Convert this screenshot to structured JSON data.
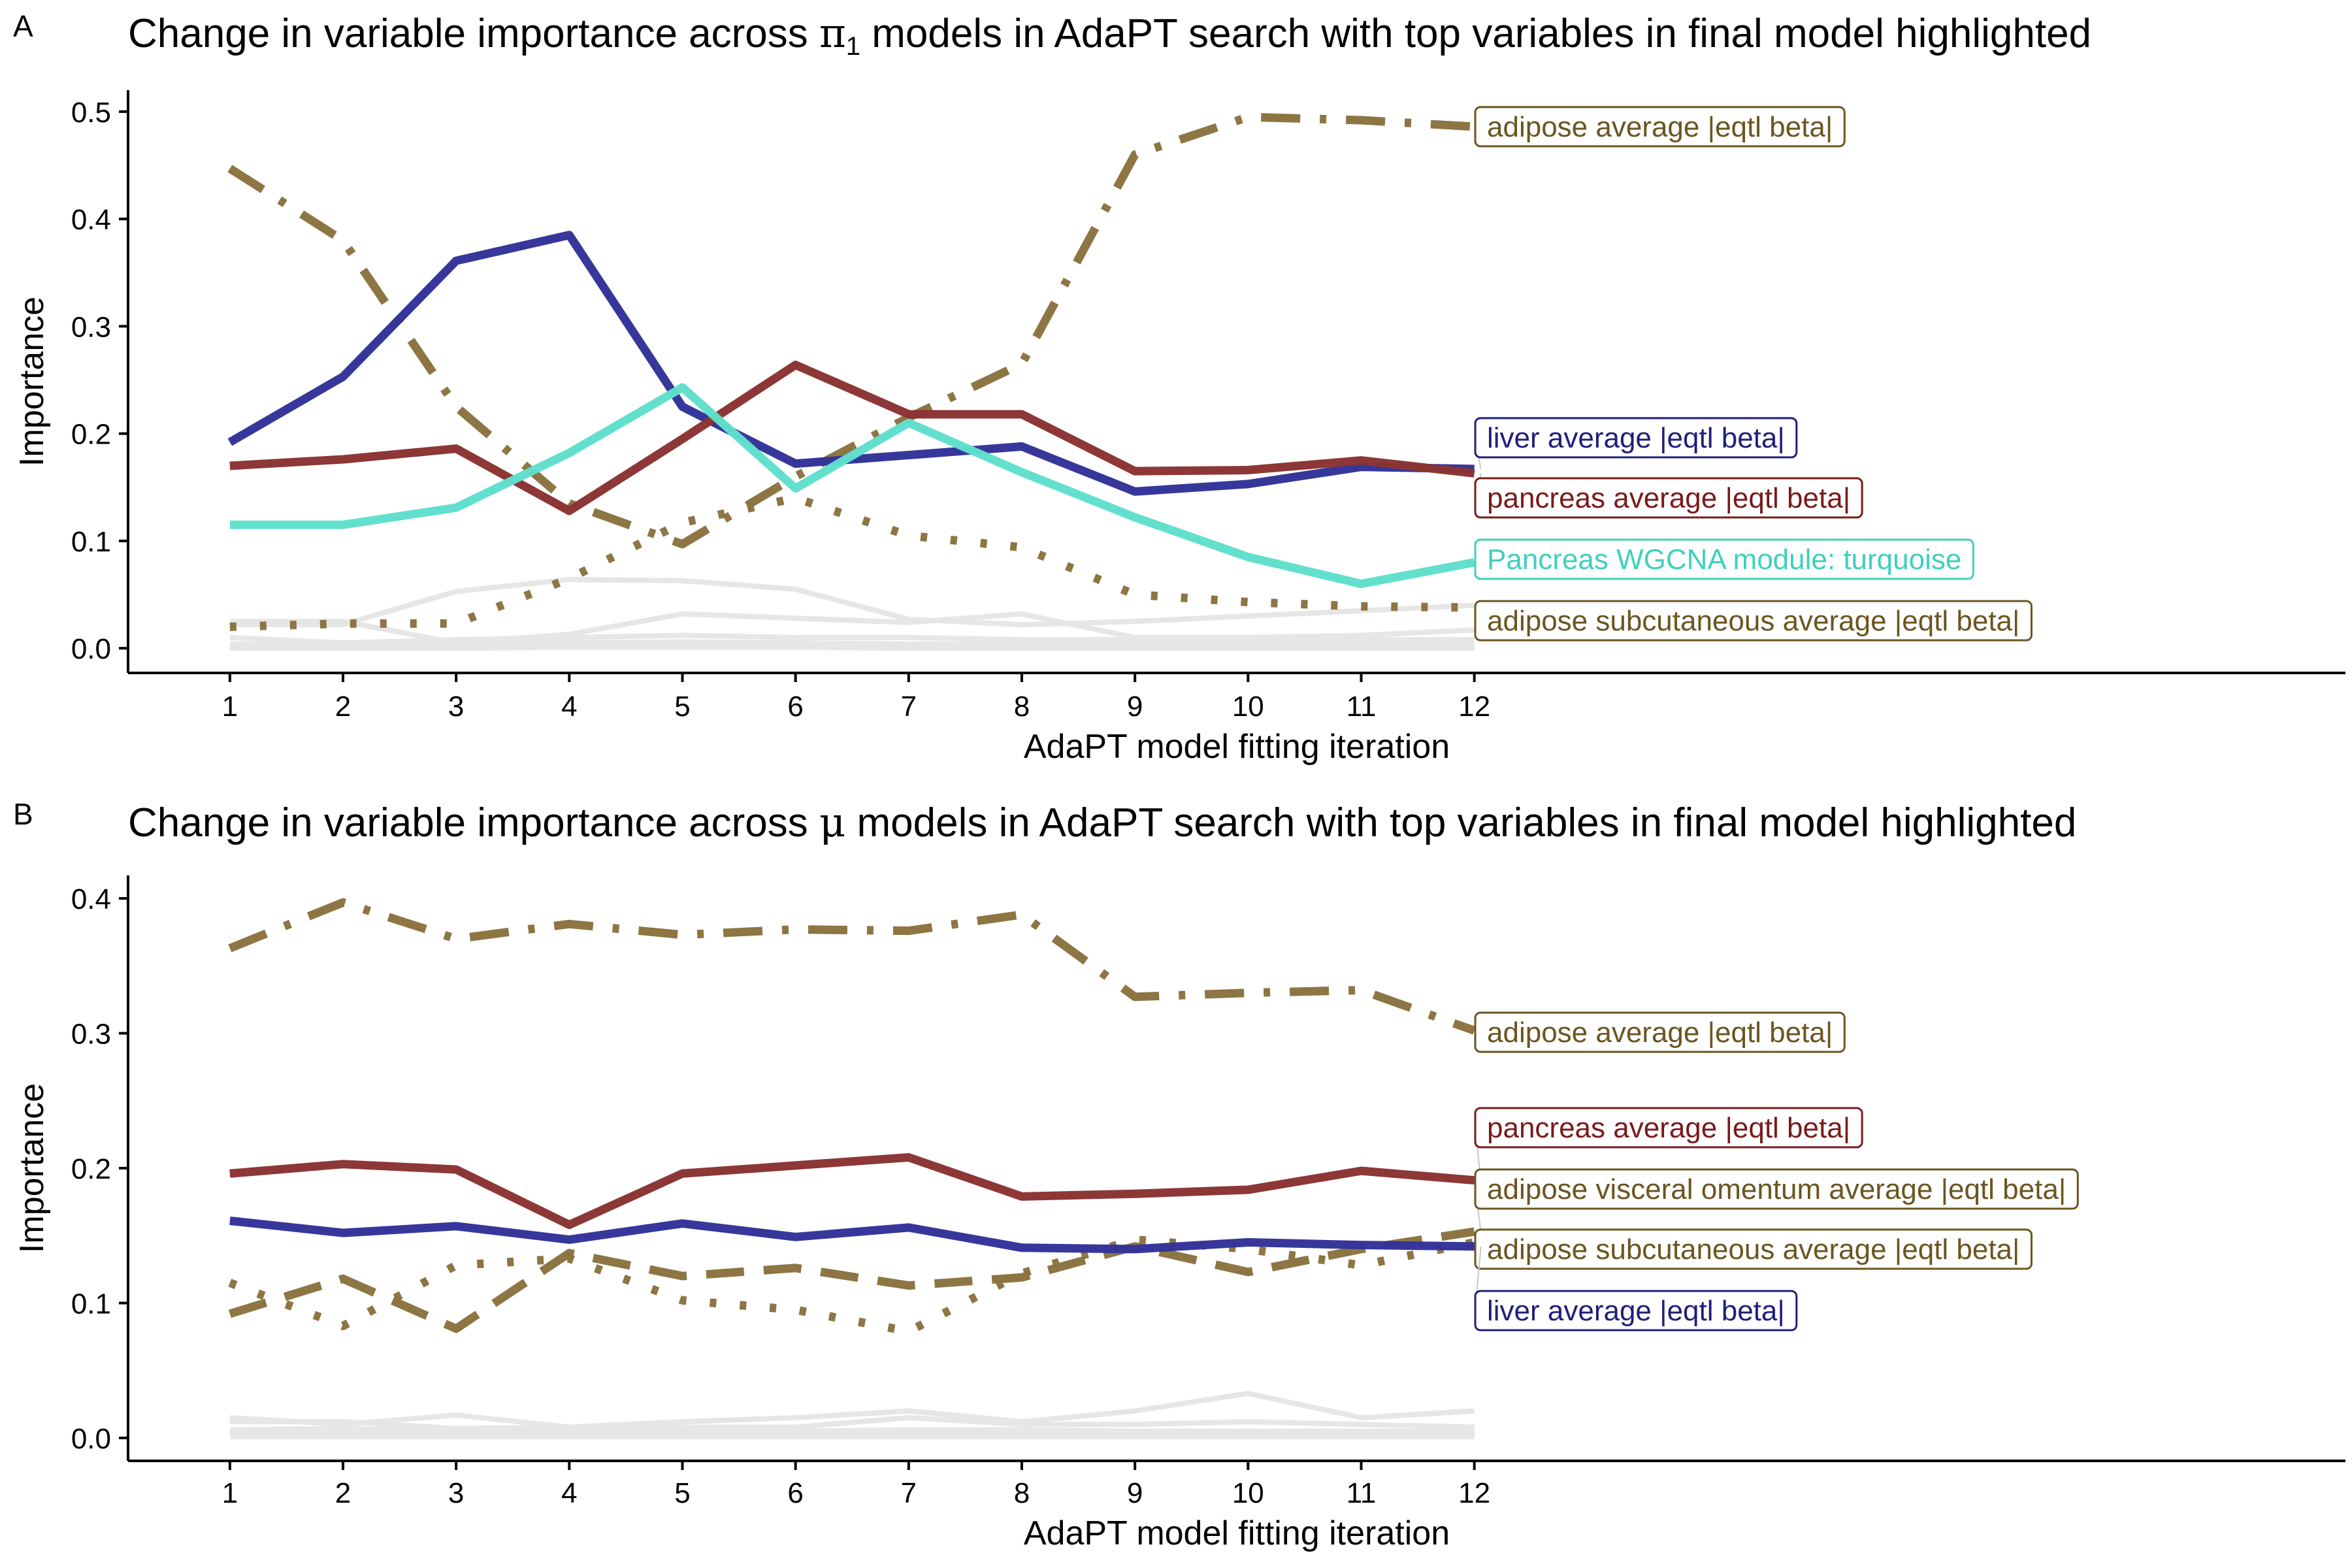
{
  "chart_data": [
    {
      "type": "line",
      "panel": "A",
      "title_pre": "Change in variable importance across ",
      "title_symbol": "π",
      "title_sub": "1",
      "title_post": " models in AdaPT search with top variables in final model highlighted",
      "xlabel": "AdaPT model fitting iteration",
      "ylabel": "Importance",
      "x": [
        1,
        2,
        3,
        4,
        5,
        6,
        7,
        8,
        9,
        10,
        11,
        12
      ],
      "xlim": [
        0.1,
        19.7
      ],
      "ylim": [
        -0.023,
        0.52
      ],
      "yticks": [
        "0.0",
        "0.1",
        "0.2",
        "0.3",
        "0.4",
        "0.5"
      ],
      "yticks_values": [
        0,
        0.1,
        0.2,
        0.3,
        0.4,
        0.5
      ],
      "xticks": [
        "1",
        "2",
        "3",
        "4",
        "5",
        "6",
        "7",
        "8",
        "9",
        "10",
        "11",
        "12"
      ],
      "series": [
        {
          "name": "adipose average |eqtl beta|",
          "color": "#8B7340",
          "dash": "dashdot",
          "label_color": "#6B5520",
          "values": [
            0.447,
            0.38,
            0.225,
            0.135,
            0.097,
            0.16,
            0.215,
            0.265,
            0.46,
            0.495,
            0.492,
            0.486
          ]
        },
        {
          "name": "liver average |eqtl beta|",
          "color": "#333399",
          "dash": "solid",
          "label_color": "#1F1F7A",
          "values": [
            0.192,
            0.253,
            0.361,
            0.385,
            0.225,
            0.172,
            0.18,
            0.188,
            0.146,
            0.153,
            0.169,
            0.167
          ]
        },
        {
          "name": "pancreas average |eqtl beta|",
          "color": "#8B3333",
          "dash": "solid",
          "label_color": "#7A1A1A",
          "values": [
            0.17,
            0.176,
            0.186,
            0.128,
            0.195,
            0.264,
            0.218,
            0.218,
            0.165,
            0.166,
            0.175,
            0.163
          ]
        },
        {
          "name": "Pancreas WGCNA module: turquoise",
          "color": "#5FDFCC",
          "dash": "solid",
          "label_color": "#40CFBF",
          "values": [
            0.115,
            0.115,
            0.131,
            0.182,
            0.243,
            0.149,
            0.21,
            0.164,
            0.122,
            0.085,
            0.06,
            0.08
          ]
        },
        {
          "name": "adipose subcutaneous average |eqtl beta|",
          "color": "#8B7340",
          "dash": "dotted",
          "label_color": "#6B5520",
          "values": [
            0.02,
            0.023,
            0.023,
            0.065,
            0.117,
            0.14,
            0.105,
            0.094,
            0.05,
            0.043,
            0.039,
            0.038
          ]
        }
      ],
      "background_series": [
        [
          0.022,
          0.022,
          0.053,
          0.064,
          0.063,
          0.055,
          0.027,
          0.022,
          0.025,
          0.03,
          0.035,
          0.04
        ],
        [
          0.025,
          0.025,
          0.005,
          0.013,
          0.032,
          0.028,
          0.024,
          0.032,
          0.01,
          0.01,
          0.012,
          0.017
        ],
        [
          0.01,
          0.005,
          0.008,
          0.01,
          0.012,
          0.01,
          0.01,
          0.008,
          0.008,
          0.008,
          0.008,
          0.008
        ],
        [
          0.004,
          0.003,
          0.003,
          0.005,
          0.006,
          0.005,
          0.004,
          0.004,
          0.004,
          0.004,
          0.004,
          0.004
        ],
        [
          0.002,
          0.002,
          0.002,
          0.002,
          0.002,
          0.002,
          0.002,
          0.002,
          0.002,
          0.002,
          0.002,
          0.002
        ],
        [
          0.0,
          0.0,
          0.0,
          0.001,
          0.001,
          0.001,
          0.0,
          0.0,
          0.0,
          0.0,
          0.0,
          0.0
        ]
      ],
      "labels_order": [
        "adipose average |eqtl beta|",
        "liver average |eqtl beta|",
        "pancreas average |eqtl beta|",
        "Pancreas WGCNA module: turquoise",
        "adipose subcutaneous average |eqtl beta|"
      ]
    },
    {
      "type": "line",
      "panel": "B",
      "title_pre": "Change in variable importance across ",
      "title_symbol": "μ",
      "title_sub": "",
      "title_post": " models in AdaPT search with top variables in final model highlighted",
      "xlabel": "AdaPT model fitting iteration",
      "ylabel": "Importance",
      "x": [
        1,
        2,
        3,
        4,
        5,
        6,
        7,
        8,
        9,
        10,
        11,
        12
      ],
      "xlim": [
        0.1,
        19.7
      ],
      "ylim": [
        -0.017,
        0.417
      ],
      "yticks": [
        "0.0",
        "0.1",
        "0.2",
        "0.3",
        "0.4"
      ],
      "yticks_values": [
        0,
        0.1,
        0.2,
        0.3,
        0.4
      ],
      "xticks": [
        "1",
        "2",
        "3",
        "4",
        "5",
        "6",
        "7",
        "8",
        "9",
        "10",
        "11",
        "12"
      ],
      "series": [
        {
          "name": "adipose average |eqtl beta|",
          "color": "#8B7340",
          "dash": "dashdot",
          "label_color": "#6B5520",
          "values": [
            0.363,
            0.397,
            0.37,
            0.381,
            0.373,
            0.377,
            0.376,
            0.388,
            0.327,
            0.33,
            0.332,
            0.302
          ]
        },
        {
          "name": "pancreas average |eqtl beta|",
          "color": "#8B3333",
          "dash": "solid",
          "label_color": "#7A1A1A",
          "values": [
            0.196,
            0.203,
            0.199,
            0.158,
            0.196,
            0.202,
            0.208,
            0.179,
            0.181,
            0.184,
            0.198,
            0.191
          ]
        },
        {
          "name": "adipose visceral omentum average |eqtl beta|",
          "color": "#8B7340",
          "dash": "dashed",
          "label_color": "#6B5520",
          "values": [
            0.092,
            0.118,
            0.081,
            0.137,
            0.12,
            0.126,
            0.113,
            0.119,
            0.142,
            0.123,
            0.14,
            0.153
          ]
        },
        {
          "name": "adipose subcutaneous average |eqtl beta|",
          "color": "#8B7340",
          "dash": "dotted",
          "label_color": "#6B5520",
          "values": [
            0.115,
            0.083,
            0.128,
            0.133,
            0.102,
            0.095,
            0.079,
            0.122,
            0.147,
            0.14,
            0.128,
            0.145
          ]
        },
        {
          "name": "liver average |eqtl beta|",
          "color": "#333399",
          "dash": "solid",
          "label_color": "#1F1F7A",
          "values": [
            0.161,
            0.152,
            0.157,
            0.147,
            0.159,
            0.149,
            0.156,
            0.141,
            0.14,
            0.145,
            0.143,
            0.142
          ]
        }
      ],
      "background_series": [
        [
          0.015,
          0.01,
          0.017,
          0.008,
          0.012,
          0.015,
          0.02,
          0.012,
          0.02,
          0.033,
          0.015,
          0.02
        ],
        [
          0.012,
          0.012,
          0.007,
          0.008,
          0.008,
          0.008,
          0.015,
          0.01,
          0.01,
          0.012,
          0.01,
          0.008
        ],
        [
          0.006,
          0.007,
          0.005,
          0.005,
          0.006,
          0.005,
          0.006,
          0.006,
          0.005,
          0.005,
          0.005,
          0.005
        ],
        [
          0.003,
          0.003,
          0.003,
          0.003,
          0.003,
          0.003,
          0.003,
          0.003,
          0.003,
          0.003,
          0.003,
          0.003
        ],
        [
          0.001,
          0.001,
          0.001,
          0.001,
          0.001,
          0.001,
          0.001,
          0.001,
          0.001,
          0.001,
          0.001,
          0.001
        ]
      ],
      "labels_order": [
        "adipose average |eqtl beta|",
        "pancreas average |eqtl beta|",
        "adipose visceral omentum average |eqtl beta|",
        "adipose subcutaneous average |eqtl beta|",
        "liver average |eqtl beta|"
      ]
    }
  ]
}
